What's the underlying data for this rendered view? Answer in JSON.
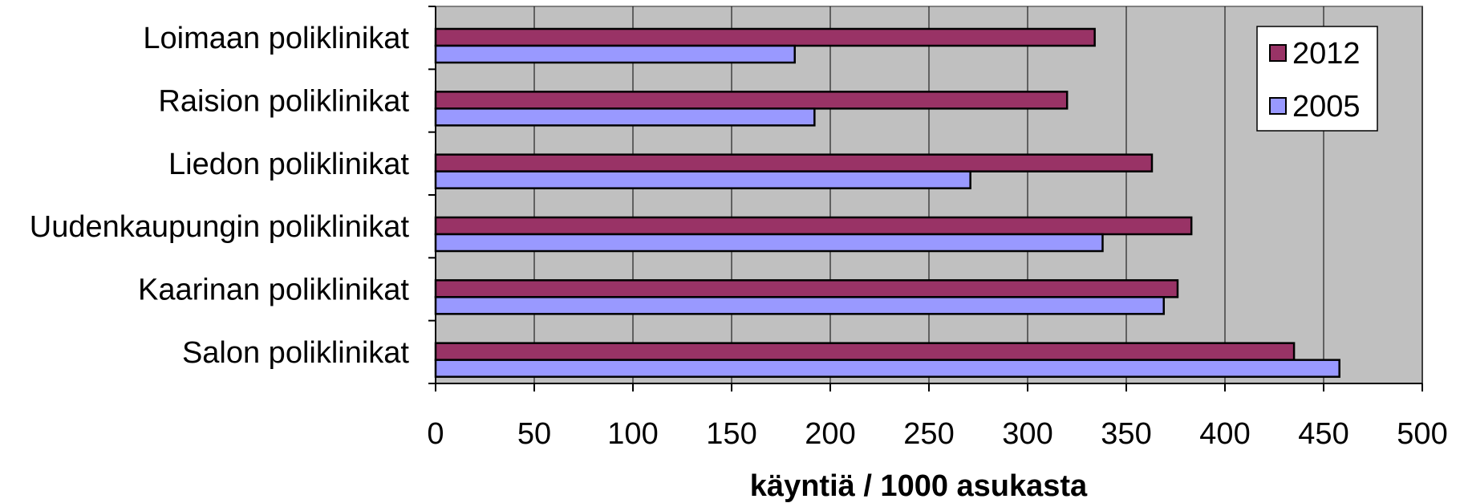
{
  "chart_data": {
    "type": "bar",
    "orientation": "horizontal",
    "categories": [
      "Loimaan poliklinikat",
      "Raision poliklinikat",
      "Liedon poliklinikat",
      "Uudenkaupungin poliklinikat",
      "Kaarinan poliklinikat",
      "Salon poliklinikat"
    ],
    "series": [
      {
        "name": "2012",
        "values": [
          334,
          320,
          363,
          383,
          376,
          435
        ]
      },
      {
        "name": "2005",
        "values": [
          182,
          192,
          271,
          338,
          369,
          458
        ]
      }
    ],
    "xlabel": "käyntiä / 1000 asukasta",
    "ylabel": "",
    "xlim": [
      0,
      500
    ],
    "xticks": [
      0,
      50,
      100,
      150,
      200,
      250,
      300,
      350,
      400,
      450,
      500
    ],
    "grid": true,
    "legend_position": "top-right",
    "colors": {
      "2012": "#993366",
      "2005": "#9999ff",
      "plot_background": "#c0c0c0",
      "gridline": "#000000"
    }
  }
}
